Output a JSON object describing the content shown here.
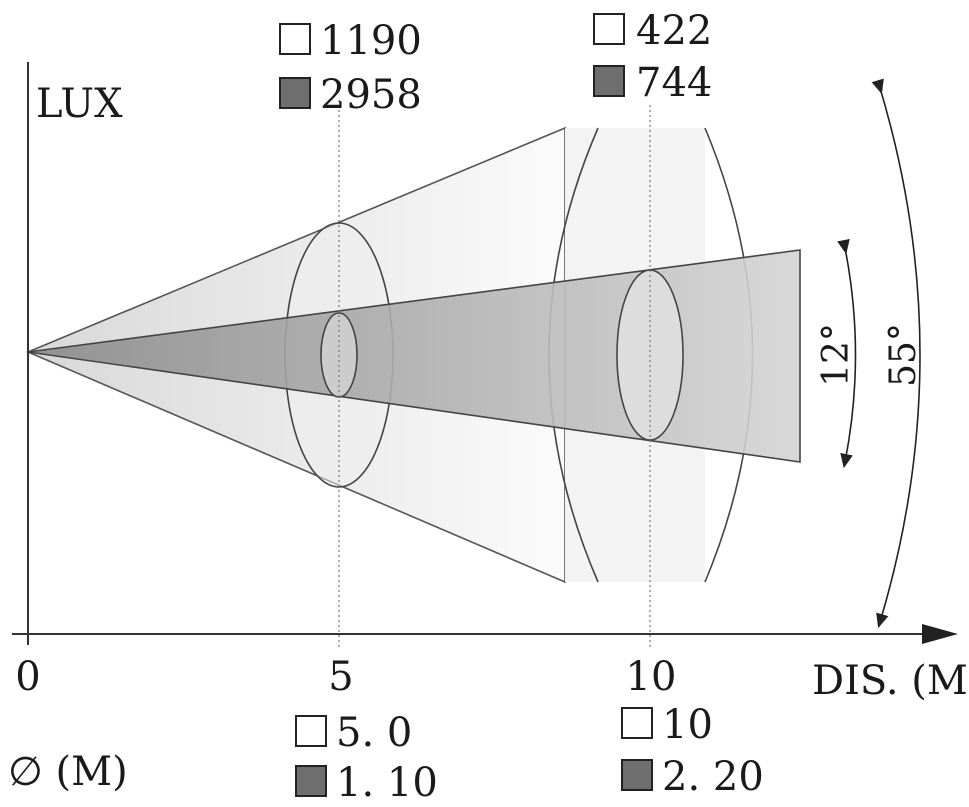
{
  "axes": {
    "y_label": "LUX",
    "x_label": "DIS. (M)",
    "diameter_label": "∅ (M)",
    "x_ticks": [
      "0",
      "5",
      "10"
    ]
  },
  "beams": {
    "wide_angle": "55°",
    "narrow_angle": "12°"
  },
  "lux": [
    {
      "distance": "5",
      "wide": "1190",
      "narrow": "2958"
    },
    {
      "distance": "10",
      "wide": "422",
      "narrow": "744"
    }
  ],
  "diameter": [
    {
      "distance": "5",
      "wide": "5. 0",
      "narrow": "1. 10"
    },
    {
      "distance": "10",
      "wide": "10",
      "narrow": "2. 20"
    }
  ],
  "colors": {
    "wide_fill": "#f0f0f0",
    "narrow_fill": "#cfcfcf",
    "narrow_swatch": "#6e6e6e",
    "line": "#444444"
  }
}
